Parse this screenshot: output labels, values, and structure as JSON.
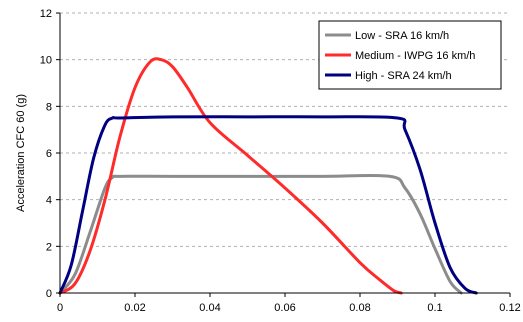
{
  "chart_data": {
    "type": "line",
    "title": "",
    "xlabel": "",
    "ylabel": "Acceleration CFC 60 (g)",
    "xlim": [
      0,
      0.12
    ],
    "ylim": [
      0,
      12
    ],
    "x_ticks": [
      "0",
      "0.02",
      "0.04",
      "0.06",
      "0.08",
      "0.1",
      "0.12"
    ],
    "y_ticks": [
      "0",
      "2",
      "4",
      "6",
      "8",
      "10",
      "12"
    ],
    "grid": "horizontal dashed",
    "legend_position": "top-right",
    "series": [
      {
        "name": "Low - SRA 16 km/h",
        "color": "#8c8c8c",
        "x": [
          0,
          0.004,
          0.008,
          0.012,
          0.014,
          0.016,
          0.03,
          0.05,
          0.07,
          0.088,
          0.092,
          0.096,
          0.1,
          0.104,
          0.107
        ],
        "y": [
          0,
          0.8,
          2.6,
          4.5,
          4.95,
          5.0,
          5.0,
          5.0,
          5.0,
          5.0,
          4.5,
          3.4,
          1.9,
          0.5,
          0
        ]
      },
      {
        "name": "Medium - IWPG 16 km/h",
        "color": "#ff2a2a",
        "x": [
          0,
          0.004,
          0.008,
          0.012,
          0.016,
          0.02,
          0.024,
          0.027,
          0.03,
          0.034,
          0.04,
          0.05,
          0.06,
          0.07,
          0.08,
          0.085,
          0.089,
          0.091
        ],
        "y": [
          0,
          0.4,
          1.8,
          4.0,
          6.7,
          8.8,
          9.9,
          10.0,
          9.7,
          8.8,
          7.3,
          5.9,
          4.5,
          3.0,
          1.3,
          0.6,
          0.1,
          0
        ]
      },
      {
        "name": "High - SRA 24 km/h",
        "color": "#000080",
        "x": [
          0,
          0.003,
          0.006,
          0.009,
          0.012,
          0.014,
          0.016,
          0.03,
          0.05,
          0.07,
          0.09,
          0.092,
          0.096,
          0.1,
          0.104,
          0.108,
          0.111
        ],
        "y": [
          0,
          1.2,
          3.5,
          5.8,
          7.2,
          7.5,
          7.5,
          7.55,
          7.55,
          7.55,
          7.5,
          7.0,
          5.3,
          3.0,
          1.1,
          0.2,
          0
        ]
      }
    ]
  }
}
